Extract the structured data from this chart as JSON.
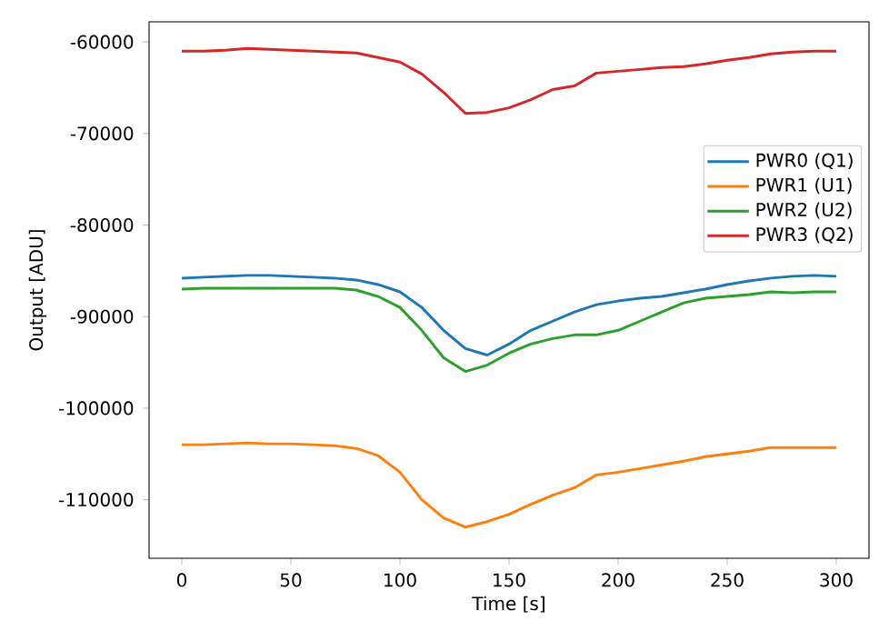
{
  "chart_data": {
    "type": "line",
    "xlabel": "Time [s]",
    "ylabel": "Output [ADU]",
    "legend": "right",
    "x": [
      0,
      10,
      20,
      30,
      40,
      50,
      60,
      70,
      80,
      90,
      100,
      110,
      120,
      130,
      140,
      150,
      160,
      170,
      180,
      190,
      200,
      210,
      220,
      230,
      240,
      250,
      260,
      270,
      280,
      290,
      300
    ],
    "xlim": [
      -15,
      315
    ],
    "xticks": [
      0,
      50,
      100,
      150,
      200,
      250,
      300
    ],
    "ylim": [
      -116400,
      -57800
    ],
    "yticks": [
      -110000,
      -100000,
      -90000,
      -80000,
      -70000,
      -60000
    ],
    "series": [
      {
        "name": "PWR0 (Q1)",
        "color": "#1f77b4",
        "values": [
          -85800,
          -85700,
          -85600,
          -85500,
          -85500,
          -85600,
          -85700,
          -85800,
          -86000,
          -86500,
          -87300,
          -89000,
          -91500,
          -93500,
          -94200,
          -93000,
          -91500,
          -90500,
          -89500,
          -88700,
          -88300,
          -88000,
          -87800,
          -87400,
          -87000,
          -86500,
          -86100,
          -85800,
          -85600,
          -85500,
          -85600
        ]
      },
      {
        "name": "PWR1 (U1)",
        "color": "#ff7f0e",
        "values": [
          -104000,
          -104000,
          -103900,
          -103800,
          -103900,
          -103900,
          -104000,
          -104100,
          -104400,
          -105200,
          -107000,
          -110000,
          -112000,
          -113000,
          -112400,
          -111600,
          -110500,
          -109500,
          -108700,
          -107300,
          -107000,
          -106600,
          -106200,
          -105800,
          -105300,
          -105000,
          -104700,
          -104300,
          -104300,
          -104300,
          -104300
        ]
      },
      {
        "name": "PWR2 (U2)",
        "color": "#2ca02c",
        "values": [
          -87000,
          -86900,
          -86900,
          -86900,
          -86900,
          -86900,
          -86900,
          -86900,
          -87100,
          -87800,
          -89000,
          -91500,
          -94500,
          -96000,
          -95300,
          -94000,
          -93000,
          -92400,
          -92000,
          -92000,
          -91500,
          -90500,
          -89500,
          -88500,
          -88000,
          -87800,
          -87600,
          -87300,
          -87400,
          -87300,
          -87300
        ]
      },
      {
        "name": "PWR3 (Q2)",
        "color": "#d62728",
        "values": [
          -61000,
          -61000,
          -60900,
          -60700,
          -60800,
          -60900,
          -61000,
          -61100,
          -61200,
          -61700,
          -62200,
          -63500,
          -65500,
          -67800,
          -67700,
          -67200,
          -66300,
          -65200,
          -64800,
          -63400,
          -63200,
          -63000,
          -62800,
          -62700,
          -62400,
          -62000,
          -61700,
          -61300,
          -61100,
          -61000,
          -61000
        ]
      }
    ]
  }
}
